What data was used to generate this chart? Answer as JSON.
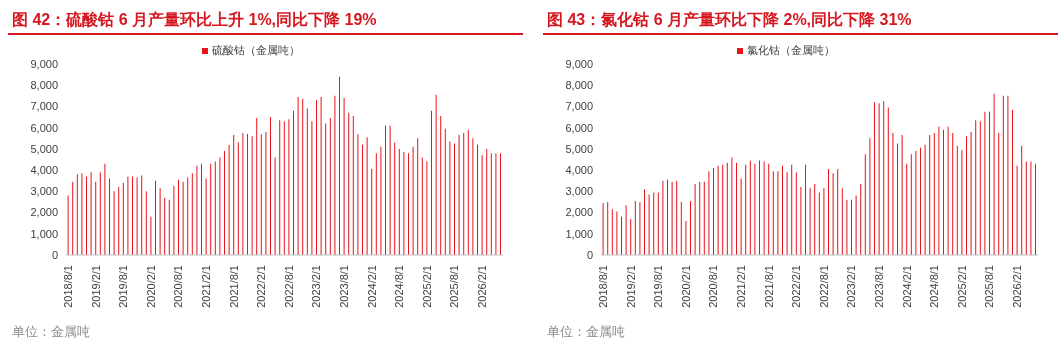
{
  "chart_data": [
    {
      "type": "bar",
      "title": "图 42：硫酸钴 6 月产量环比上升 1%,同比下降 19%",
      "annotations": [
        "单位：金属吨"
      ],
      "categories": [
        "2018/8/1",
        null,
        null,
        null,
        null,
        null,
        "2019/2/1",
        null,
        null,
        null,
        null,
        null,
        "2019/8/1",
        null,
        null,
        null,
        null,
        null,
        "2020/2/1",
        null,
        null,
        null,
        null,
        null,
        "2020/8/1",
        null,
        null,
        null,
        null,
        null,
        "2021/2/1",
        null,
        null,
        null,
        null,
        null,
        "2021/8/1",
        null,
        null,
        null,
        null,
        null,
        "2022/2/1",
        null,
        null,
        null,
        null,
        null,
        "2022/8/1",
        null,
        null,
        null,
        null,
        null,
        "2023/2/1",
        null,
        null,
        null,
        null,
        null,
        "2023/8/1",
        null,
        null,
        null,
        null,
        null,
        "2024/2/1",
        null,
        null,
        null,
        null,
        null,
        "2024/8/1",
        null,
        null,
        null,
        null,
        null,
        "2025/2/1",
        null,
        null,
        null,
        null,
        null,
        "2025/8/1",
        null,
        null,
        null,
        null,
        null,
        "2026/2/1",
        null,
        null,
        null,
        null
      ],
      "series": [
        {
          "name": "硫酸钴（金属吨）",
          "color": "#e8141b",
          "values": [
            2800,
            3450,
            3800,
            3850,
            3700,
            3900,
            3450,
            3900,
            4300,
            3600,
            3000,
            3200,
            3400,
            3700,
            3700,
            3650,
            3750,
            3000,
            1800,
            3500,
            3150,
            2700,
            2600,
            3250,
            3550,
            3450,
            3650,
            3850,
            4200,
            4300,
            3600,
            4300,
            4400,
            4600,
            4900,
            5200,
            5650,
            5300,
            5750,
            5700,
            5600,
            6450,
            5700,
            5800,
            6500,
            4600,
            6350,
            6300,
            6400,
            6800,
            7450,
            7350,
            6900,
            6300,
            7300,
            7450,
            6200,
            6450,
            7500,
            8400,
            7400,
            6700,
            6550,
            5700,
            5200,
            5550,
            4050,
            4800,
            5100,
            6100,
            6100,
            5300,
            5000,
            4850,
            4800,
            5100,
            5500,
            4600,
            4400,
            6800,
            7550,
            6550,
            5950,
            5350,
            5250,
            5650,
            5750,
            5900,
            5500,
            5200,
            4700,
            5000,
            4800,
            4800,
            4800
          ]
        }
      ],
      "ylim": [
        0,
        9000
      ],
      "yticks": [
        0,
        {
          "value": 1000,
          "label": "1,000"
        },
        {
          "value": 2000,
          "label": "2,000"
        },
        {
          "value": 3000,
          "label": "3,000"
        },
        {
          "value": 4000,
          "label": "4,000"
        },
        {
          "value": 5000,
          "label": "5,000"
        },
        {
          "value": 6000,
          "label": "6,000"
        },
        {
          "value": 7000,
          "label": "7,000"
        },
        {
          "value": 8000,
          "label": "8,000"
        },
        {
          "value": 9000,
          "label": "9,000"
        }
      ],
      "legend": "top"
    },
    {
      "type": "bar",
      "title": "图 43：氯化钴 6 月产量环比下降 2%,同比下降 31%",
      "annotations": [
        "单位：金属吨"
      ],
      "categories": [
        "2018/8/1",
        null,
        null,
        null,
        null,
        null,
        "2019/2/1",
        null,
        null,
        null,
        null,
        null,
        "2019/8/1",
        null,
        null,
        null,
        null,
        null,
        "2020/2/1",
        null,
        null,
        null,
        null,
        null,
        "2020/8/1",
        null,
        null,
        null,
        null,
        null,
        "2021/2/1",
        null,
        null,
        null,
        null,
        null,
        "2021/8/1",
        null,
        null,
        null,
        null,
        null,
        "2022/2/1",
        null,
        null,
        null,
        null,
        null,
        "2022/8/1",
        null,
        null,
        null,
        null,
        null,
        "2023/2/1",
        null,
        null,
        null,
        null,
        null,
        "2023/8/1",
        null,
        null,
        null,
        null,
        null,
        "2024/2/1",
        null,
        null,
        null,
        null,
        null,
        "2024/8/1",
        null,
        null,
        null,
        null,
        null,
        "2025/2/1",
        null,
        null,
        null,
        null,
        null,
        "2025/8/1",
        null,
        null,
        null,
        null,
        null,
        "2026/2/1",
        null,
        null,
        null,
        null
      ],
      "series": [
        {
          "name": "氯化钴（金属吨）",
          "color": "#e8141b",
          "values": [
            2450,
            2500,
            2150,
            2050,
            1800,
            2350,
            1700,
            2550,
            2500,
            3100,
            2850,
            2950,
            2950,
            3500,
            3550,
            3450,
            3500,
            2500,
            1600,
            2550,
            3350,
            3450,
            3450,
            3950,
            4100,
            4200,
            4250,
            4350,
            4600,
            4350,
            3600,
            4250,
            4450,
            4300,
            4450,
            4400,
            4300,
            3950,
            3950,
            4200,
            3900,
            4250,
            3900,
            3200,
            4250,
            3150,
            3350,
            2950,
            3150,
            4050,
            3850,
            4050,
            3150,
            2600,
            2600,
            2800,
            3350,
            4750,
            5500,
            7200,
            7150,
            7250,
            6950,
            5750,
            5250,
            5650,
            4300,
            4750,
            4900,
            5050,
            5200,
            5650,
            5750,
            6050,
            5900,
            6050,
            5750,
            5150,
            4950,
            5600,
            5800,
            6350,
            6300,
            6750,
            6750,
            7600,
            5750,
            7500,
            7500,
            6850,
            4200,
            5150,
            4400,
            4400,
            4300
          ]
        }
      ],
      "ylim": [
        0,
        9000
      ],
      "yticks": [
        0,
        {
          "value": 1000,
          "label": "1,000"
        },
        {
          "value": 2000,
          "label": "2,000"
        },
        {
          "value": 3000,
          "label": "3,000"
        },
        {
          "value": 4000,
          "label": "4,000"
        },
        {
          "value": 5000,
          "label": "5,000"
        },
        {
          "value": 6000,
          "label": "6,000"
        },
        {
          "value": 7000,
          "label": "7,000"
        },
        {
          "value": 8000,
          "label": "8,000"
        },
        {
          "value": 9000,
          "label": "9,000"
        }
      ],
      "legend": "top"
    }
  ]
}
